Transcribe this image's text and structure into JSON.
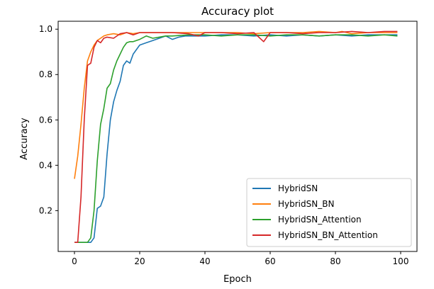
{
  "chart_data": {
    "type": "line",
    "title": "Accuracy plot",
    "xlabel": "Epoch",
    "ylabel": "Accuracy",
    "xlim": [
      -5,
      105
    ],
    "ylim": [
      0.02,
      1.035
    ],
    "xticks": [
      0,
      20,
      40,
      60,
      80,
      100
    ],
    "yticks": [
      0.2,
      0.4,
      0.6,
      0.8,
      1.0
    ],
    "xtick_labels": [
      "0",
      "20",
      "40",
      "60",
      "80",
      "100"
    ],
    "ytick_labels": [
      "0.2",
      "0.4",
      "0.6",
      "0.8",
      "1.0"
    ],
    "grid": false,
    "legend_position": "lower-right",
    "series": [
      {
        "name": "HybridSN",
        "color": "#1f77b4",
        "points": [
          [
            0,
            0.06
          ],
          [
            1,
            0.06
          ],
          [
            2,
            0.06
          ],
          [
            3,
            0.06
          ],
          [
            4,
            0.06
          ],
          [
            5,
            0.06
          ],
          [
            6,
            0.08
          ],
          [
            7,
            0.21
          ],
          [
            8,
            0.22
          ],
          [
            9,
            0.26
          ],
          [
            10,
            0.45
          ],
          [
            11,
            0.6
          ],
          [
            12,
            0.68
          ],
          [
            13,
            0.73
          ],
          [
            14,
            0.77
          ],
          [
            15,
            0.84
          ],
          [
            16,
            0.86
          ],
          [
            17,
            0.85
          ],
          [
            18,
            0.89
          ],
          [
            19,
            0.91
          ],
          [
            20,
            0.93
          ],
          [
            22,
            0.94
          ],
          [
            24,
            0.95
          ],
          [
            26,
            0.96
          ],
          [
            28,
            0.97
          ],
          [
            30,
            0.955
          ],
          [
            32,
            0.965
          ],
          [
            34,
            0.97
          ],
          [
            36,
            0.97
          ],
          [
            38,
            0.97
          ],
          [
            40,
            0.97
          ],
          [
            45,
            0.975
          ],
          [
            50,
            0.975
          ],
          [
            55,
            0.97
          ],
          [
            60,
            0.975
          ],
          [
            65,
            0.97
          ],
          [
            70,
            0.975
          ],
          [
            75,
            0.97
          ],
          [
            80,
            0.975
          ],
          [
            85,
            0.97
          ],
          [
            90,
            0.975
          ],
          [
            95,
            0.975
          ],
          [
            99,
            0.975
          ]
        ]
      },
      {
        "name": "HybridSN_BN",
        "color": "#ff7f0e",
        "points": [
          [
            0,
            0.34
          ],
          [
            1,
            0.44
          ],
          [
            2,
            0.58
          ],
          [
            3,
            0.74
          ],
          [
            4,
            0.86
          ],
          [
            5,
            0.9
          ],
          [
            6,
            0.93
          ],
          [
            7,
            0.95
          ],
          [
            8,
            0.96
          ],
          [
            9,
            0.97
          ],
          [
            10,
            0.975
          ],
          [
            12,
            0.98
          ],
          [
            14,
            0.975
          ],
          [
            16,
            0.985
          ],
          [
            18,
            0.98
          ],
          [
            20,
            0.985
          ],
          [
            25,
            0.985
          ],
          [
            30,
            0.985
          ],
          [
            35,
            0.985
          ],
          [
            40,
            0.985
          ],
          [
            45,
            0.985
          ],
          [
            50,
            0.985
          ],
          [
            55,
            0.98
          ],
          [
            60,
            0.985
          ],
          [
            65,
            0.985
          ],
          [
            70,
            0.985
          ],
          [
            75,
            0.99
          ],
          [
            80,
            0.985
          ],
          [
            82,
            0.99
          ],
          [
            85,
            0.98
          ],
          [
            90,
            0.985
          ],
          [
            95,
            0.985
          ],
          [
            99,
            0.985
          ]
        ]
      },
      {
        "name": "HybridSN_Attention",
        "color": "#2ca02c",
        "points": [
          [
            0,
            0.06
          ],
          [
            1,
            0.06
          ],
          [
            2,
            0.06
          ],
          [
            3,
            0.06
          ],
          [
            4,
            0.06
          ],
          [
            5,
            0.08
          ],
          [
            6,
            0.2
          ],
          [
            7,
            0.42
          ],
          [
            8,
            0.58
          ],
          [
            9,
            0.65
          ],
          [
            10,
            0.74
          ],
          [
            11,
            0.76
          ],
          [
            12,
            0.82
          ],
          [
            13,
            0.86
          ],
          [
            14,
            0.89
          ],
          [
            15,
            0.92
          ],
          [
            16,
            0.94
          ],
          [
            17,
            0.945
          ],
          [
            18,
            0.945
          ],
          [
            20,
            0.955
          ],
          [
            22,
            0.97
          ],
          [
            24,
            0.96
          ],
          [
            26,
            0.965
          ],
          [
            28,
            0.97
          ],
          [
            30,
            0.97
          ],
          [
            35,
            0.975
          ],
          [
            40,
            0.975
          ],
          [
            45,
            0.97
          ],
          [
            50,
            0.975
          ],
          [
            55,
            0.975
          ],
          [
            60,
            0.97
          ],
          [
            65,
            0.975
          ],
          [
            70,
            0.975
          ],
          [
            75,
            0.97
          ],
          [
            80,
            0.975
          ],
          [
            85,
            0.975
          ],
          [
            90,
            0.97
          ],
          [
            95,
            0.975
          ],
          [
            99,
            0.97
          ]
        ]
      },
      {
        "name": "HybridSN_BN_Attention",
        "color": "#d62728",
        "points": [
          [
            0,
            0.06
          ],
          [
            1,
            0.06
          ],
          [
            2,
            0.26
          ],
          [
            3,
            0.6
          ],
          [
            4,
            0.84
          ],
          [
            5,
            0.85
          ],
          [
            6,
            0.92
          ],
          [
            7,
            0.95
          ],
          [
            8,
            0.94
          ],
          [
            9,
            0.96
          ],
          [
            10,
            0.965
          ],
          [
            12,
            0.96
          ],
          [
            14,
            0.98
          ],
          [
            16,
            0.985
          ],
          [
            18,
            0.975
          ],
          [
            20,
            0.985
          ],
          [
            25,
            0.985
          ],
          [
            30,
            0.985
          ],
          [
            35,
            0.98
          ],
          [
            38,
            0.97
          ],
          [
            40,
            0.985
          ],
          [
            45,
            0.985
          ],
          [
            50,
            0.98
          ],
          [
            55,
            0.985
          ],
          [
            58,
            0.945
          ],
          [
            60,
            0.985
          ],
          [
            65,
            0.985
          ],
          [
            70,
            0.98
          ],
          [
            75,
            0.985
          ],
          [
            80,
            0.985
          ],
          [
            85,
            0.99
          ],
          [
            90,
            0.985
          ],
          [
            95,
            0.99
          ],
          [
            99,
            0.99
          ]
        ]
      }
    ]
  }
}
